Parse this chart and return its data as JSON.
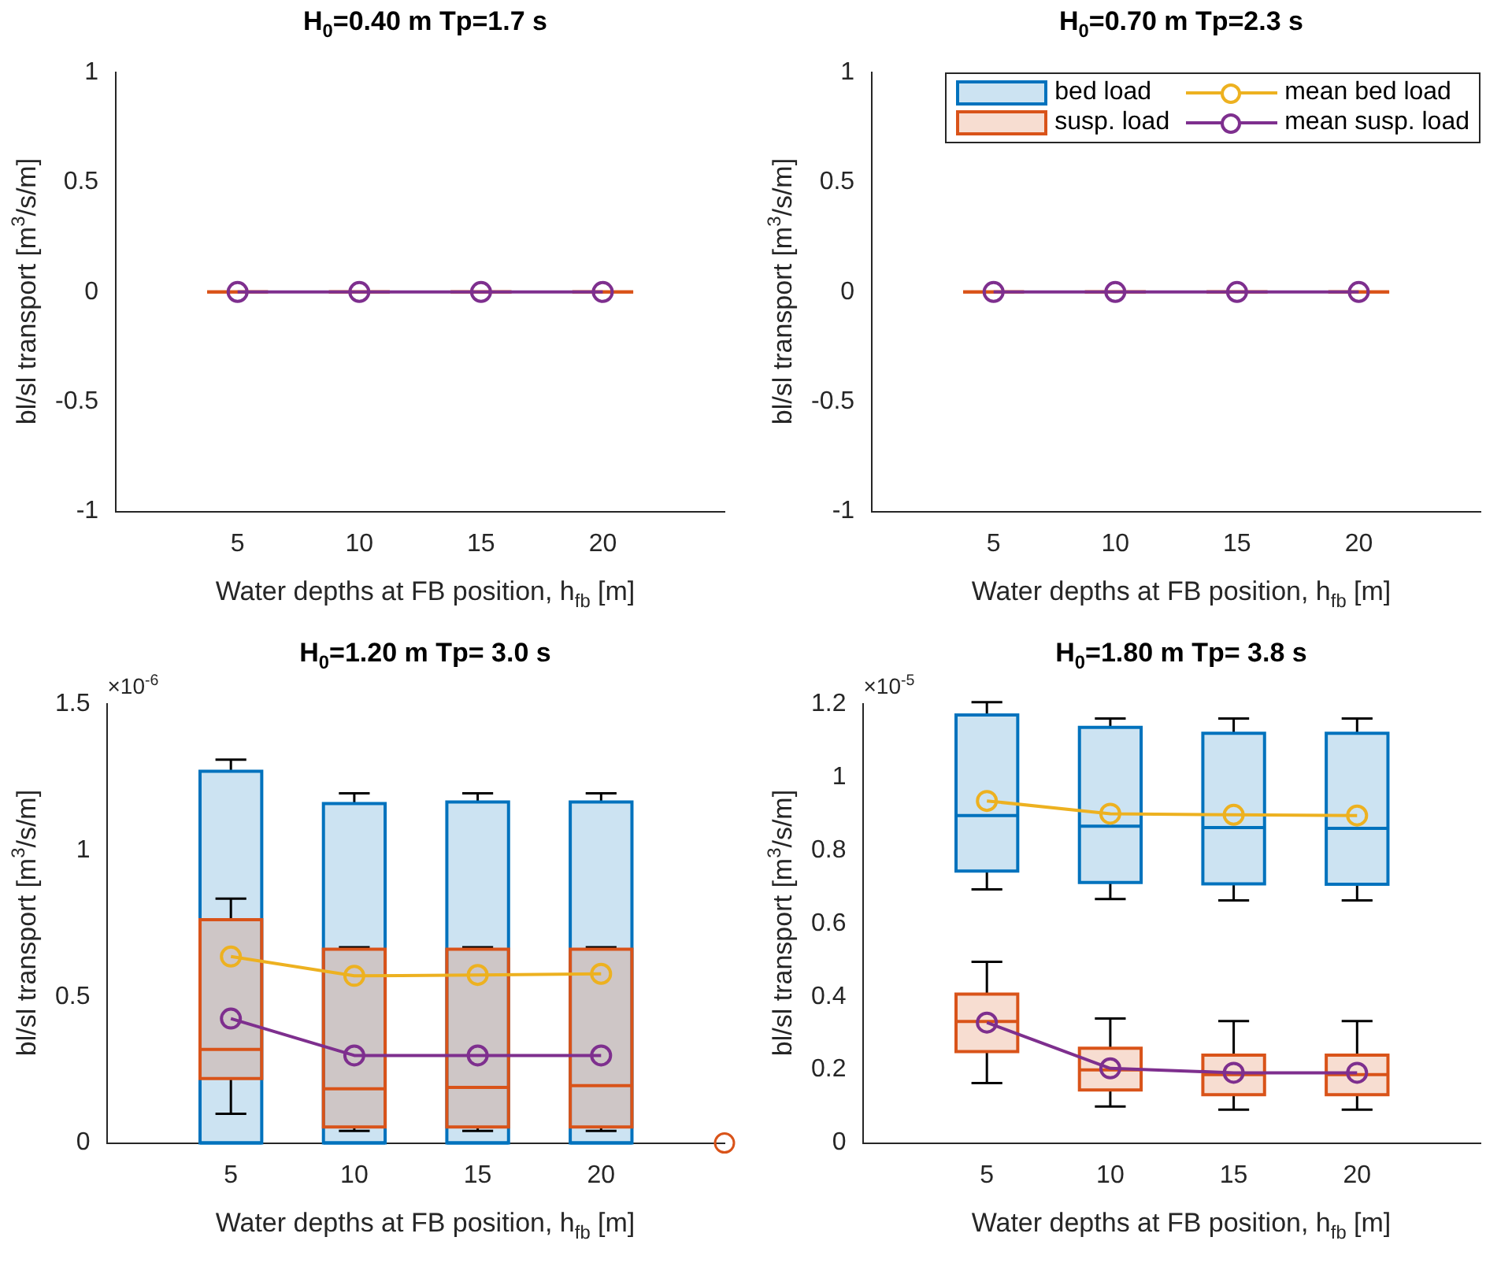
{
  "chart_data": [
    {
      "type": "box",
      "title": "H$_{0}$=0.40 m Tp=1.7 s",
      "xlabel": "Water depths at FB position, h$_{fb}$ [m]",
      "ylabel": "bl/sl transport [m$^{3}$/s/m]",
      "categories": [
        null,
        "5",
        "10",
        "15",
        "20",
        null
      ],
      "ylim": [
        -1,
        1
      ],
      "yticks": [
        -1,
        -0.5,
        0,
        0.5,
        1
      ],
      "marker": "circle",
      "series": [
        {
          "type": "box",
          "color": "#d95319",
          "boxes": [
            null,
            {
              "low": 0,
              "q1": 0,
              "median": 0,
              "q3": 0,
              "high": 0
            },
            {
              "low": 0,
              "q1": 0,
              "median": 0,
              "q3": 0,
              "high": 0
            },
            {
              "low": 0,
              "q1": 0,
              "median": 0,
              "q3": 0,
              "high": 0
            },
            {
              "low": 0,
              "q1": 0,
              "median": 0,
              "q3": 0,
              "high": 0
            },
            null
          ]
        },
        {
          "type": "line",
          "color": "#7e2f8e",
          "values": [
            null,
            0,
            0,
            0,
            0,
            null
          ]
        }
      ]
    },
    {
      "type": "box",
      "title": "H$_{0}$=0.70 m Tp=2.3 s",
      "xlabel": "Water depths at FB position, h$_{fb}$ [m]",
      "ylabel": "bl/sl transport [m$^{3}$/s/m]",
      "categories": [
        null,
        "5",
        "10",
        "15",
        "20",
        null
      ],
      "ylim": [
        -1,
        1
      ],
      "yticks": [
        -1,
        -0.5,
        0,
        0.5,
        1
      ],
      "marker": "circle",
      "legend": "top right",
      "series": [
        {
          "name": "bed load",
          "type": "box",
          "color": "#0072bd",
          "boxes": [
            null,
            null,
            null,
            null,
            null,
            null
          ]
        },
        {
          "name": "susp. load",
          "type": "box",
          "color": "#d95319",
          "boxes": [
            null,
            {
              "low": 0,
              "q1": 0,
              "median": 0,
              "q3": 0,
              "high": 0
            },
            {
              "low": 0,
              "q1": 0,
              "median": 0,
              "q3": 0,
              "high": 0
            },
            {
              "low": 0,
              "q1": 0,
              "median": 0,
              "q3": 0,
              "high": 0
            },
            {
              "low": 0,
              "q1": 0,
              "median": 0,
              "q3": 0,
              "high": 0
            },
            null
          ]
        },
        {
          "name": "mean bed load",
          "type": "line",
          "color": "#edb120",
          "values": [
            null,
            null,
            null,
            null,
            null,
            null
          ]
        },
        {
          "name": "mean susp. load",
          "type": "line",
          "color": "#7e2f8e",
          "values": [
            null,
            0,
            0,
            0,
            0,
            null
          ]
        }
      ]
    },
    {
      "type": "box",
      "title": "H$_{0}$=1.20 m Tp= 3.0 s",
      "xlabel": "Water depths at FB position, h$_{fb}$ [m]",
      "ylabel": "bl/sl transport [m$^{3}$/s/m]",
      "annotations": [
        "×10$^{-6}$"
      ],
      "categories": [
        null,
        "5",
        "10",
        "15",
        "20",
        null
      ],
      "ylim": [
        0,
        1.5
      ],
      "yticks": [
        0,
        0.5,
        1,
        1.5
      ],
      "marker": "circle",
      "series": [
        {
          "type": "box",
          "color": "#0072bd",
          "boxes": [
            null,
            {
              "low": 0,
              "q1": 0,
              "median": 0,
              "q3": 1.27,
              "high": 1.31
            },
            {
              "low": 0,
              "q1": 0,
              "median": 0,
              "q3": 1.16,
              "high": 1.195
            },
            {
              "low": 0,
              "q1": 0,
              "median": 0,
              "q3": 1.165,
              "high": 1.195
            },
            {
              "low": 0,
              "q1": 0,
              "median": 0,
              "q3": 1.165,
              "high": 1.195
            },
            null
          ]
        },
        {
          "type": "box",
          "color": "#d95319",
          "boxes": [
            null,
            {
              "low": 0.1,
              "q1": 0.22,
              "median": 0.32,
              "q3": 0.763,
              "high": 0.835
            },
            {
              "low": 0.041,
              "q1": 0.055,
              "median": 0.185,
              "q3": 0.662,
              "high": 0.669
            },
            {
              "low": 0.041,
              "q1": 0.055,
              "median": 0.19,
              "q3": 0.662,
              "high": 0.669
            },
            {
              "low": 0.041,
              "q1": 0.055,
              "median": 0.196,
              "q3": 0.662,
              "high": 0.669
            },
            null
          ]
        },
        {
          "type": "line",
          "color": "#edb120",
          "values": [
            null,
            0.637,
            0.571,
            0.574,
            0.578,
            null
          ]
        },
        {
          "type": "line",
          "color": "#7e2f8e",
          "values": [
            null,
            0.425,
            0.299,
            0.299,
            0.299,
            null
          ]
        },
        {
          "type": "scatter",
          "color": "#d95319",
          "values": [
            null,
            null,
            null,
            null,
            null,
            0
          ]
        }
      ]
    },
    {
      "type": "box",
      "title": "H$_{0}$=1.80 m Tp= 3.8 s",
      "xlabel": "Water depths at FB position, h$_{fb}$ [m]",
      "ylabel": "bl/sl transport [m$^{3}$/s/m]",
      "annotations": [
        "×10$^{-5}$"
      ],
      "categories": [
        null,
        "5",
        "10",
        "15",
        "20",
        null
      ],
      "ylim": [
        0,
        1.2
      ],
      "yticks": [
        0,
        0.2,
        0.4,
        0.6,
        0.8,
        1,
        1.2
      ],
      "marker": "circle",
      "series": [
        {
          "type": "box",
          "color": "#0072bd",
          "boxes": [
            null,
            {
              "low": 0.693,
              "q1": 0.743,
              "median": 0.895,
              "q3": 1.17,
              "high": 1.205
            },
            {
              "low": 0.667,
              "q1": 0.712,
              "median": 0.866,
              "q3": 1.136,
              "high": 1.16
            },
            {
              "low": 0.663,
              "q1": 0.708,
              "median": 0.862,
              "q3": 1.12,
              "high": 1.16
            },
            {
              "low": 0.663,
              "q1": 0.707,
              "median": 0.86,
              "q3": 1.12,
              "high": 1.16
            },
            null
          ]
        },
        {
          "type": "box",
          "color": "#d95319",
          "boxes": [
            null,
            {
              "low": 0.164,
              "q1": 0.25,
              "median": 0.332,
              "q3": 0.407,
              "high": 0.495
            },
            {
              "low": 0.1,
              "q1": 0.145,
              "median": 0.2,
              "q3": 0.259,
              "high": 0.34
            },
            {
              "low": 0.091,
              "q1": 0.132,
              "median": 0.187,
              "q3": 0.24,
              "high": 0.333
            },
            {
              "low": 0.091,
              "q1": 0.132,
              "median": 0.187,
              "q3": 0.24,
              "high": 0.333
            },
            null
          ]
        },
        {
          "type": "line",
          "color": "#edb120",
          "values": [
            null,
            0.935,
            0.9,
            0.897,
            0.895,
            null
          ]
        },
        {
          "type": "line",
          "color": "#7e2f8e",
          "values": [
            null,
            0.329,
            0.204,
            0.192,
            0.192,
            null
          ]
        }
      ]
    }
  ]
}
